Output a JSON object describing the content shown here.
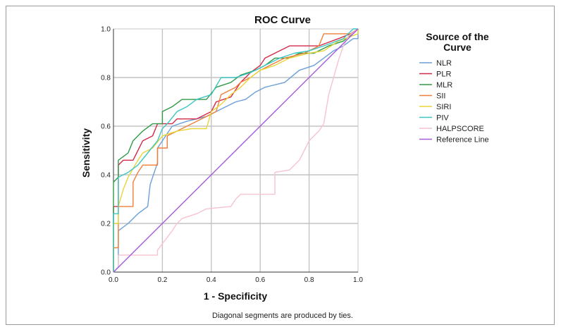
{
  "chart_data": {
    "type": "line",
    "title": "ROC Curve",
    "xlabel": "1 - Specificity",
    "ylabel": "Sensitivity",
    "xlim": [
      0,
      1
    ],
    "ylim": [
      0,
      1
    ],
    "xticks": [
      "0.0",
      "0.2",
      "0.4",
      "0.6",
      "0.8",
      "1.0"
    ],
    "yticks": [
      "0.0",
      "0.2",
      "0.4",
      "0.6",
      "0.8",
      "1.0"
    ],
    "grid": true,
    "legend_title": "Source of the Curve",
    "legend_position": "right",
    "footnote": "Diagonal segments are produced by ties.",
    "series": [
      {
        "name": "NLR",
        "color": "#6a9fd8",
        "points": [
          [
            0,
            0
          ],
          [
            0.02,
            0.02
          ],
          [
            0.02,
            0.17
          ],
          [
            0.06,
            0.2
          ],
          [
            0.1,
            0.24
          ],
          [
            0.14,
            0.27
          ],
          [
            0.15,
            0.36
          ],
          [
            0.18,
            0.45
          ],
          [
            0.18,
            0.51
          ],
          [
            0.24,
            0.6
          ],
          [
            0.3,
            0.62
          ],
          [
            0.38,
            0.64
          ],
          [
            0.42,
            0.66
          ],
          [
            0.46,
            0.68
          ],
          [
            0.5,
            0.7
          ],
          [
            0.54,
            0.71
          ],
          [
            0.58,
            0.74
          ],
          [
            0.62,
            0.76
          ],
          [
            0.7,
            0.78
          ],
          [
            0.76,
            0.83
          ],
          [
            0.82,
            0.85
          ],
          [
            0.86,
            0.88
          ],
          [
            0.9,
            0.91
          ],
          [
            0.94,
            0.93
          ],
          [
            0.98,
            0.96
          ],
          [
            1,
            0.96
          ],
          [
            1,
            1
          ]
        ]
      },
      {
        "name": "PLR",
        "color": "#d42a4a",
        "points": [
          [
            0,
            0
          ],
          [
            0,
            0.27
          ],
          [
            0.02,
            0.27
          ],
          [
            0.02,
            0.44
          ],
          [
            0.04,
            0.46
          ],
          [
            0.08,
            0.46
          ],
          [
            0.1,
            0.5
          ],
          [
            0.12,
            0.54
          ],
          [
            0.16,
            0.56
          ],
          [
            0.18,
            0.61
          ],
          [
            0.24,
            0.61
          ],
          [
            0.26,
            0.63
          ],
          [
            0.34,
            0.63
          ],
          [
            0.4,
            0.66
          ],
          [
            0.42,
            0.7
          ],
          [
            0.48,
            0.72
          ],
          [
            0.52,
            0.78
          ],
          [
            0.56,
            0.82
          ],
          [
            0.6,
            0.85
          ],
          [
            0.62,
            0.88
          ],
          [
            0.66,
            0.9
          ],
          [
            0.72,
            0.93
          ],
          [
            0.84,
            0.93
          ],
          [
            0.92,
            0.96
          ],
          [
            0.97,
            0.98
          ],
          [
            1,
            1
          ]
        ]
      },
      {
        "name": "MLR",
        "color": "#2e9a47",
        "points": [
          [
            0,
            0
          ],
          [
            0,
            0.37
          ],
          [
            0.02,
            0.39
          ],
          [
            0.02,
            0.46
          ],
          [
            0.06,
            0.49
          ],
          [
            0.08,
            0.54
          ],
          [
            0.12,
            0.58
          ],
          [
            0.16,
            0.61
          ],
          [
            0.2,
            0.61
          ],
          [
            0.2,
            0.66
          ],
          [
            0.24,
            0.68
          ],
          [
            0.28,
            0.71
          ],
          [
            0.38,
            0.71
          ],
          [
            0.42,
            0.76
          ],
          [
            0.48,
            0.78
          ],
          [
            0.52,
            0.81
          ],
          [
            0.58,
            0.83
          ],
          [
            0.62,
            0.85
          ],
          [
            0.66,
            0.88
          ],
          [
            0.72,
            0.88
          ],
          [
            0.76,
            0.9
          ],
          [
            0.82,
            0.9
          ],
          [
            0.88,
            0.93
          ],
          [
            0.94,
            0.95
          ],
          [
            1,
            1
          ]
        ]
      },
      {
        "name": "SII",
        "color": "#f07f3a",
        "points": [
          [
            0,
            0
          ],
          [
            0,
            0.1
          ],
          [
            0.02,
            0.1
          ],
          [
            0.02,
            0.27
          ],
          [
            0.08,
            0.27
          ],
          [
            0.08,
            0.37
          ],
          [
            0.1,
            0.41
          ],
          [
            0.12,
            0.44
          ],
          [
            0.18,
            0.44
          ],
          [
            0.18,
            0.51
          ],
          [
            0.22,
            0.51
          ],
          [
            0.22,
            0.56
          ],
          [
            0.26,
            0.58
          ],
          [
            0.32,
            0.61
          ],
          [
            0.38,
            0.64
          ],
          [
            0.42,
            0.66
          ],
          [
            0.44,
            0.73
          ],
          [
            0.5,
            0.76
          ],
          [
            0.52,
            0.78
          ],
          [
            0.56,
            0.8
          ],
          [
            0.6,
            0.83
          ],
          [
            0.7,
            0.88
          ],
          [
            0.78,
            0.9
          ],
          [
            0.84,
            0.93
          ],
          [
            0.86,
            0.98
          ],
          [
            0.98,
            0.98
          ],
          [
            1,
            1
          ]
        ]
      },
      {
        "name": "SIRI",
        "color": "#e8d53a",
        "points": [
          [
            0,
            0
          ],
          [
            0,
            0.2
          ],
          [
            0.02,
            0.2
          ],
          [
            0.02,
            0.27
          ],
          [
            0.04,
            0.34
          ],
          [
            0.06,
            0.39
          ],
          [
            0.1,
            0.46
          ],
          [
            0.12,
            0.49
          ],
          [
            0.16,
            0.51
          ],
          [
            0.2,
            0.56
          ],
          [
            0.26,
            0.58
          ],
          [
            0.32,
            0.59
          ],
          [
            0.38,
            0.59
          ],
          [
            0.4,
            0.66
          ],
          [
            0.44,
            0.69
          ],
          [
            0.48,
            0.73
          ],
          [
            0.52,
            0.76
          ],
          [
            0.56,
            0.8
          ],
          [
            0.6,
            0.83
          ],
          [
            0.66,
            0.85
          ],
          [
            0.72,
            0.88
          ],
          [
            0.8,
            0.9
          ],
          [
            0.86,
            0.91
          ],
          [
            0.92,
            0.95
          ],
          [
            1,
            0.98
          ],
          [
            1,
            1
          ]
        ]
      },
      {
        "name": "PIV",
        "color": "#3cc6c4",
        "points": [
          [
            0,
            0
          ],
          [
            0,
            0.24
          ],
          [
            0.02,
            0.24
          ],
          [
            0.02,
            0.39
          ],
          [
            0.06,
            0.41
          ],
          [
            0.1,
            0.44
          ],
          [
            0.14,
            0.49
          ],
          [
            0.18,
            0.54
          ],
          [
            0.2,
            0.59
          ],
          [
            0.22,
            0.61
          ],
          [
            0.26,
            0.66
          ],
          [
            0.3,
            0.68
          ],
          [
            0.34,
            0.71
          ],
          [
            0.4,
            0.73
          ],
          [
            0.44,
            0.8
          ],
          [
            0.5,
            0.8
          ],
          [
            0.56,
            0.82
          ],
          [
            0.62,
            0.85
          ],
          [
            0.68,
            0.88
          ],
          [
            0.74,
            0.9
          ],
          [
            0.8,
            0.91
          ],
          [
            0.86,
            0.93
          ],
          [
            0.94,
            0.96
          ],
          [
            0.98,
            1
          ],
          [
            1,
            1
          ]
        ]
      },
      {
        "name": "HALPSCORE",
        "color": "#f6c3cf",
        "points": [
          [
            0,
            0
          ],
          [
            0.02,
            0.02
          ],
          [
            0.02,
            0.07
          ],
          [
            0.18,
            0.07
          ],
          [
            0.18,
            0.09
          ],
          [
            0.24,
            0.17
          ],
          [
            0.26,
            0.2
          ],
          [
            0.28,
            0.22
          ],
          [
            0.34,
            0.24
          ],
          [
            0.38,
            0.26
          ],
          [
            0.48,
            0.27
          ],
          [
            0.5,
            0.3
          ],
          [
            0.52,
            0.32
          ],
          [
            0.66,
            0.32
          ],
          [
            0.66,
            0.41
          ],
          [
            0.72,
            0.42
          ],
          [
            0.76,
            0.46
          ],
          [
            0.78,
            0.5
          ],
          [
            0.8,
            0.54
          ],
          [
            0.84,
            0.58
          ],
          [
            0.86,
            0.61
          ],
          [
            0.88,
            0.73
          ],
          [
            0.9,
            0.8
          ],
          [
            0.92,
            0.87
          ],
          [
            0.94,
            0.93
          ],
          [
            0.96,
            0.97
          ],
          [
            1,
            1
          ]
        ]
      },
      {
        "name": "Reference Line",
        "color": "#a45cdc",
        "points": [
          [
            0,
            0
          ],
          [
            1,
            1
          ]
        ]
      }
    ]
  }
}
